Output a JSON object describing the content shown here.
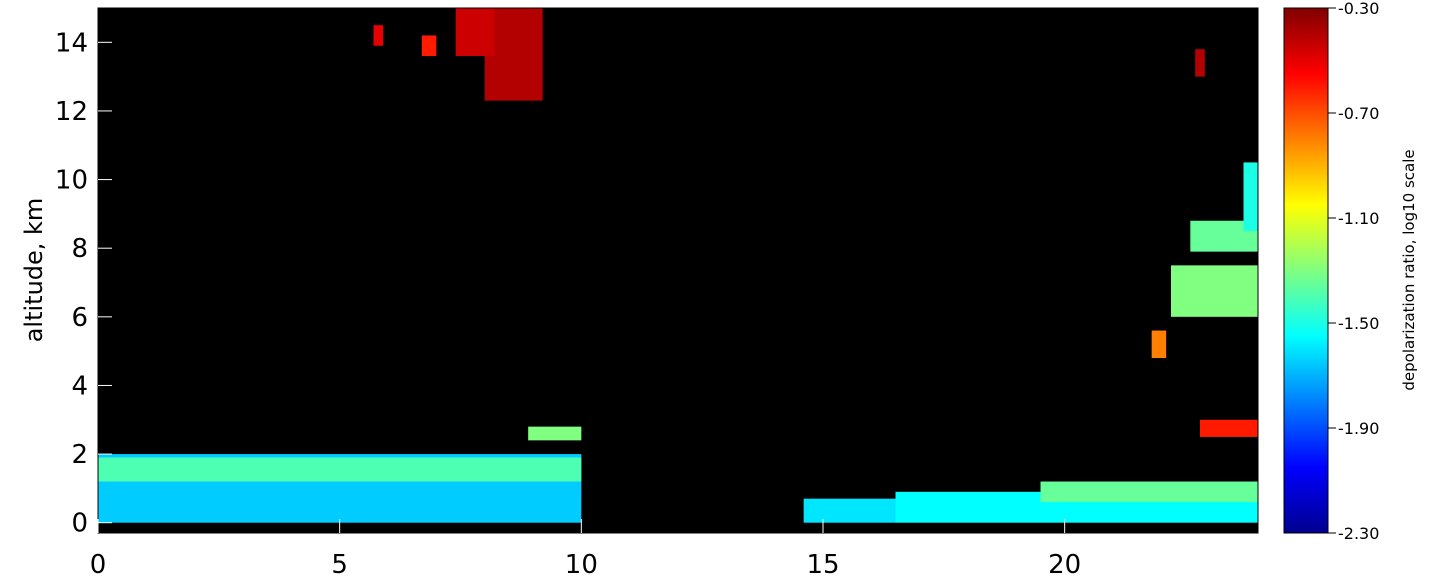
{
  "chart_data": {
    "type": "heatmap",
    "title": "",
    "xlabel": "",
    "ylabel": "altitude, km",
    "xlim": [
      0,
      24
    ],
    "ylim": [
      -0.3,
      15
    ],
    "x_ticks": [
      0,
      5,
      10,
      15,
      20
    ],
    "y_ticks": [
      0,
      2,
      4,
      6,
      8,
      10,
      12,
      14
    ],
    "background_color": "#000000",
    "colorbar": {
      "label": "depolarization ratio, log10 scale",
      "scale": "log10",
      "range": [
        -2.3,
        -0.3
      ],
      "ticks": [
        "-0.30",
        "-0.70",
        "-1.10",
        "-1.50",
        "-1.90",
        "-2.30"
      ],
      "tick_values": [
        -0.3,
        -0.7,
        -1.1,
        -1.5,
        -1.9,
        -2.3
      ],
      "colors": [
        "#00008f",
        "#0000ff",
        "#0080ff",
        "#00ffff",
        "#80ff80",
        "#ffff00",
        "#ff8000",
        "#ff0000",
        "#800000"
      ]
    },
    "regions": [
      {
        "name": "boundary layer 0-10 h",
        "x": [
          0,
          10
        ],
        "y": [
          0,
          2.0
        ],
        "value": -1.65
      },
      {
        "name": "boundary layer 0-10 h upper",
        "x": [
          0,
          10
        ],
        "y": [
          1.2,
          1.9
        ],
        "value": -1.4
      },
      {
        "name": "aerosol layer near 9.5 h",
        "x": [
          8.9,
          10
        ],
        "y": [
          2.4,
          2.8
        ],
        "value": -1.3
      },
      {
        "name": "cirrus near 8.5 h",
        "x": [
          8.0,
          9.2
        ],
        "y": [
          12.3,
          15
        ],
        "value": -0.4
      },
      {
        "name": "cirrus near 7.5 h",
        "x": [
          7.4,
          8.2
        ],
        "y": [
          13.6,
          15
        ],
        "value": -0.45
      },
      {
        "name": "cirrus fragment near 5.8 h",
        "x": [
          5.7,
          5.9
        ],
        "y": [
          13.9,
          14.5
        ],
        "value": -0.5
      },
      {
        "name": "cirrus fragment near 6.8 h",
        "x": [
          6.7,
          7.0
        ],
        "y": [
          13.6,
          14.2
        ],
        "value": -0.6
      },
      {
        "name": "low layer 14.6-16.5 h",
        "x": [
          14.6,
          16.5
        ],
        "y": [
          0,
          0.7
        ],
        "value": -1.6
      },
      {
        "name": "boundary layer 16.5-24 h",
        "x": [
          16.5,
          24
        ],
        "y": [
          0,
          0.9
        ],
        "value": -1.55
      },
      {
        "name": "boundary layer 20-24 h top",
        "x": [
          19.5,
          24
        ],
        "y": [
          0.6,
          1.2
        ],
        "value": -1.35
      },
      {
        "name": "layer near 23.3 h",
        "x": [
          22.8,
          24
        ],
        "y": [
          2.5,
          3.0
        ],
        "value": -0.6
      },
      {
        "name": "mid cloud near 22 h",
        "x": [
          21.8,
          22.1
        ],
        "y": [
          4.8,
          5.6
        ],
        "value": -0.8
      },
      {
        "name": "mid cloud 6-7 km",
        "x": [
          22.2,
          24
        ],
        "y": [
          6.0,
          7.5
        ],
        "value": -1.3
      },
      {
        "name": "mid cloud 8-9 km",
        "x": [
          22.6,
          24
        ],
        "y": [
          7.9,
          8.8
        ],
        "value": -1.35
      },
      {
        "name": "cloud near 10 km",
        "x": [
          23.7,
          24
        ],
        "y": [
          8.5,
          10.5
        ],
        "value": -1.5
      },
      {
        "name": "cirrus near 22.8 h",
        "x": [
          22.7,
          22.9
        ],
        "y": [
          13.0,
          13.8
        ],
        "value": -0.4
      }
    ]
  }
}
